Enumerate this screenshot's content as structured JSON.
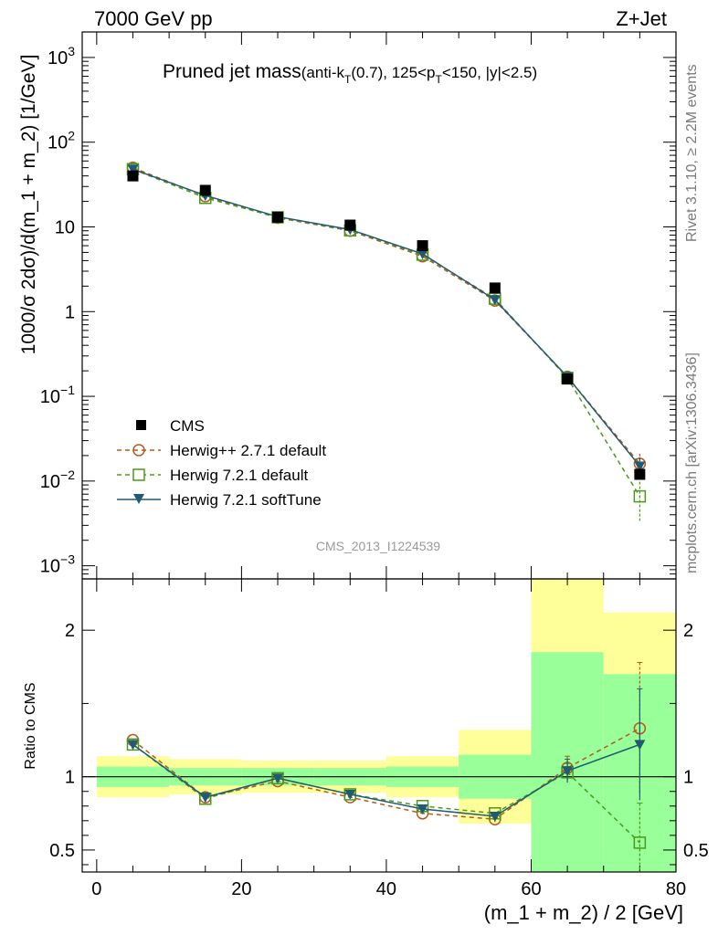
{
  "header": {
    "left": "7000 GeV pp",
    "right": "Z+Jet",
    "title": "Pruned jet mass",
    "subtitle_prefix": "(anti-k",
    "subtitle_sub1": "T",
    "subtitle_mid": "(0.7), 125<p",
    "subtitle_sub2": "T",
    "subtitle_end": "<150, |y|<2.5)",
    "watermark": "CMS_2013_I1224539",
    "side_top": "Rivet 3.1.10, ≥ 2.2M events",
    "side_bottom": "mcplots.cern.ch [arXiv:1306.3436]"
  },
  "colors": {
    "cms": "#000000",
    "herwigpp": "#b35a1f",
    "herwig721": "#4a9a1a",
    "softtune": "#1f5c73",
    "band_inner": "#99ff99",
    "band_outer": "#ffff99"
  },
  "chart_data": [
    {
      "type": "scatter",
      "panel": "main",
      "xlabel": "(m_1 + m_2) / 2 [GeV]",
      "ylabel": "1000/σ 2dσ)/d(m_1 + m_2) [1/GeV]",
      "yscale": "log",
      "ylim": [
        0.0007,
        2000
      ],
      "xlim": [
        -2,
        80
      ],
      "yticks": [
        {
          "v": 0.001,
          "base": "10",
          "exp": "−3"
        },
        {
          "v": 0.01,
          "base": "10",
          "exp": "−2"
        },
        {
          "v": 0.1,
          "base": "10",
          "exp": "−1"
        },
        {
          "v": 1,
          "base": "1",
          "exp": ""
        },
        {
          "v": 10,
          "base": "10",
          "exp": ""
        },
        {
          "v": 100,
          "base": "10",
          "exp": "2"
        },
        {
          "v": 1000,
          "base": "10",
          "exp": "3"
        }
      ],
      "x": [
        5,
        15,
        25,
        35,
        45,
        55,
        65,
        75
      ],
      "series": [
        {
          "name": "CMS",
          "style": "square-filled",
          "values": [
            40,
            27,
            13,
            10.5,
            6.0,
            1.9,
            0.16,
            0.012
          ]
        },
        {
          "name": "Herwig++ 2.7.1 default",
          "style": "circle-open-dashed",
          "values": [
            50,
            23,
            12.8,
            9.0,
            4.5,
            1.35,
            0.17,
            0.016
          ],
          "err": [
            0,
            0,
            0,
            0,
            0,
            0,
            0,
            0.005
          ]
        },
        {
          "name": "Herwig 7.2.1 default",
          "style": "square-open-dashed",
          "values": [
            48,
            22,
            13.0,
            9.1,
            4.7,
            1.42,
            0.165,
            0.0066
          ],
          "err": [
            0,
            0,
            0,
            0,
            0,
            0,
            0,
            0.0032
          ]
        },
        {
          "name": "Herwig 7.2.1 softTune",
          "style": "triangle-down-solid",
          "values": [
            48,
            23.5,
            13.2,
            9.3,
            4.8,
            1.38,
            0.17,
            0.015
          ],
          "err": [
            0,
            0,
            0,
            0,
            0,
            0,
            0,
            0.004
          ]
        }
      ],
      "legend_position": "lower-left"
    },
    {
      "type": "line",
      "panel": "ratio",
      "ylabel": "Ratio to CMS",
      "xlabel": "(m_1 + m_2) / 2 [GeV]",
      "ylim": [
        0.35,
        2.35
      ],
      "xlim": [
        -2,
        80
      ],
      "yticks": [
        0.5,
        1,
        2
      ],
      "xticks": [
        0,
        20,
        40,
        60,
        80
      ],
      "x": [
        5,
        15,
        25,
        35,
        45,
        55,
        65,
        75
      ],
      "bins": [
        [
          0,
          10
        ],
        [
          10,
          20
        ],
        [
          20,
          30
        ],
        [
          30,
          40
        ],
        [
          40,
          50
        ],
        [
          50,
          60
        ],
        [
          60,
          70
        ],
        [
          70,
          80
        ]
      ],
      "bands": {
        "inner": [
          [
            0.93,
            1.07
          ],
          [
            0.94,
            1.06
          ],
          [
            0.94,
            1.06
          ],
          [
            0.94,
            1.06
          ],
          [
            0.93,
            1.07
          ],
          [
            0.85,
            1.15
          ],
          [
            0.35,
            1.85
          ],
          [
            0.35,
            1.7
          ]
        ],
        "outer": [
          [
            0.86,
            1.14
          ],
          [
            0.88,
            1.12
          ],
          [
            0.89,
            1.11
          ],
          [
            0.89,
            1.11
          ],
          [
            0.86,
            1.14
          ],
          [
            0.68,
            1.32
          ],
          [
            0.35,
            2.35
          ],
          [
            0.43,
            2.12
          ]
        ]
      },
      "series": [
        {
          "name": "Herwig++ 2.7.1 default",
          "values": [
            1.25,
            0.86,
            0.97,
            0.86,
            0.75,
            0.71,
            1.06,
            1.33
          ],
          "err": [
            0,
            0,
            0,
            0,
            0,
            0.03,
            0.08,
            0.45
          ]
        },
        {
          "name": "Herwig 7.2.1 default",
          "values": [
            1.22,
            0.85,
            0.99,
            0.88,
            0.8,
            0.75,
            1.03,
            0.55
          ],
          "err": [
            0,
            0,
            0,
            0,
            0,
            0,
            0.06,
            0.27
          ]
        },
        {
          "name": "Herwig 7.2.1 softTune",
          "values": [
            1.22,
            0.86,
            0.99,
            0.88,
            0.78,
            0.73,
            1.04,
            1.22
          ],
          "err": [
            0,
            0,
            0,
            0,
            0,
            0.02,
            0.08,
            0.38
          ]
        }
      ]
    }
  ]
}
